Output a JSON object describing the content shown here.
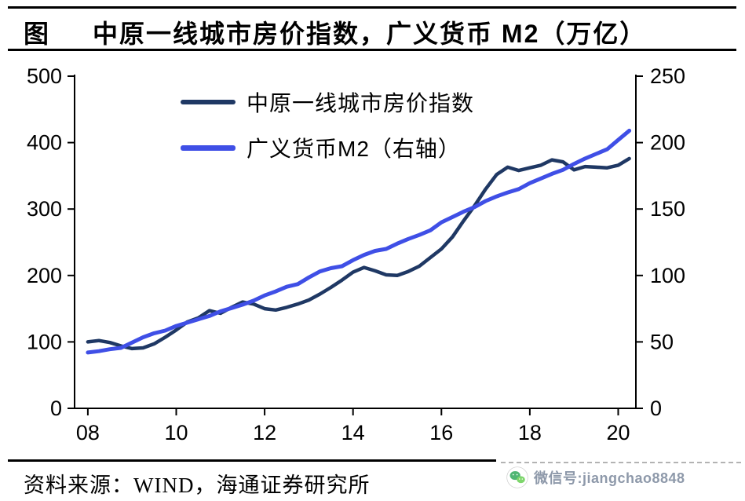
{
  "header": {
    "title_prefix": "图",
    "title": "中原一线城市房价指数，广义货币 M2（万亿）"
  },
  "footer": {
    "source": "资料来源：WIND，海通证券研究所",
    "watermark_label": "微信号:",
    "watermark_id": "jiangchao8848",
    "watermark_text_color": "#8e99aa",
    "wechat_green": "#50b674"
  },
  "chart_data": {
    "type": "line",
    "title": "中原一线城市房价指数，广义货币M2（万亿）",
    "legend_position": "top-left-inside",
    "grid": "off",
    "x_range": [
      2007.7,
      2020.4
    ],
    "x_ticks": [
      "08",
      "10",
      "12",
      "14",
      "16",
      "18",
      "20"
    ],
    "x_tick_values": [
      2008,
      2010,
      2012,
      2014,
      2016,
      2018,
      2020
    ],
    "left_axis": {
      "label": "",
      "range": [
        0,
        500
      ],
      "ticks": [
        0,
        100,
        200,
        300,
        400,
        500
      ]
    },
    "right_axis": {
      "label": "",
      "range": [
        0,
        250
      ],
      "ticks": [
        0,
        50,
        100,
        150,
        200,
        250
      ]
    },
    "series": [
      {
        "name": "中原一线城市房价指数",
        "axis": "left",
        "color": "#1f3864",
        "width": 4.5,
        "x": [
          2008,
          2008.25,
          2008.5,
          2008.75,
          2009,
          2009.25,
          2009.5,
          2009.75,
          2010,
          2010.25,
          2010.5,
          2010.75,
          2011,
          2011.25,
          2011.5,
          2011.75,
          2012,
          2012.25,
          2012.5,
          2012.75,
          2013,
          2013.25,
          2013.5,
          2013.75,
          2014,
          2014.25,
          2014.5,
          2014.75,
          2015,
          2015.25,
          2015.5,
          2015.75,
          2016,
          2016.25,
          2016.5,
          2016.75,
          2017,
          2017.25,
          2017.5,
          2017.75,
          2018,
          2018.25,
          2018.5,
          2018.75,
          2019,
          2019.25,
          2019.5,
          2019.75,
          2020,
          2020.25
        ],
        "values": [
          100,
          102,
          99,
          94,
          90,
          91,
          97,
          107,
          118,
          130,
          136,
          147,
          143,
          152,
          160,
          157,
          150,
          148,
          152,
          157,
          163,
          172,
          182,
          193,
          205,
          212,
          207,
          201,
          200,
          206,
          214,
          227,
          240,
          258,
          282,
          305,
          330,
          352,
          363,
          358,
          362,
          366,
          374,
          371,
          359,
          364,
          363,
          362,
          366,
          376
        ]
      },
      {
        "name": "广义货币M2（右轴）",
        "axis": "right",
        "color": "#3f4fe6",
        "width": 5,
        "x": [
          2008,
          2008.25,
          2008.5,
          2008.75,
          2009,
          2009.25,
          2009.5,
          2009.75,
          2010,
          2010.25,
          2010.5,
          2010.75,
          2011,
          2011.25,
          2011.5,
          2011.75,
          2012,
          2012.25,
          2012.5,
          2012.75,
          2013,
          2013.25,
          2013.5,
          2013.75,
          2014,
          2014.25,
          2014.5,
          2014.75,
          2015,
          2015.25,
          2015.5,
          2015.75,
          2016,
          2016.25,
          2016.5,
          2016.75,
          2017,
          2017.25,
          2017.5,
          2017.75,
          2018,
          2018.25,
          2018.5,
          2018.75,
          2019,
          2019.25,
          2019.5,
          2019.75,
          2020,
          2020.25
        ],
        "values": [
          42,
          43,
          44.5,
          45.5,
          49.5,
          53.5,
          56.5,
          58.5,
          62,
          64.5,
          67,
          69.5,
          73,
          75.5,
          78,
          81,
          85,
          88,
          91.5,
          93.5,
          98.5,
          103,
          105.5,
          107,
          111.5,
          115.5,
          118.5,
          120,
          124,
          127.5,
          130.5,
          134,
          140,
          144,
          148,
          151.5,
          156,
          159.5,
          162.5,
          165,
          169.5,
          173,
          176.5,
          179.5,
          184,
          188,
          191.5,
          195,
          202,
          209
        ]
      }
    ]
  }
}
